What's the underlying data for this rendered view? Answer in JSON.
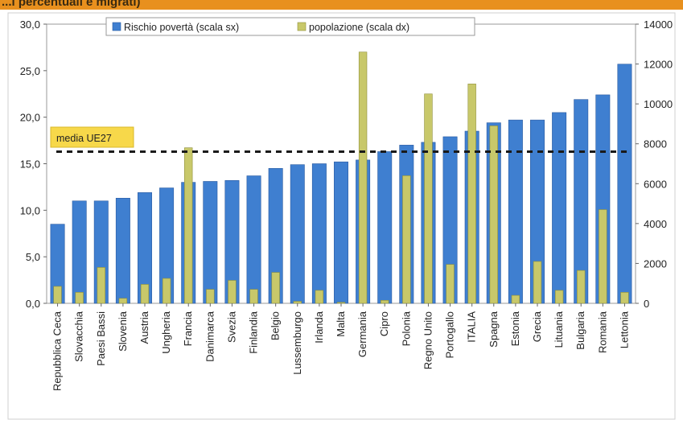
{
  "header_text": "...i percentuali e migrati)",
  "chart_data": {
    "type": "bar",
    "categories": [
      "Repubblica Ceca",
      "Slovacchia",
      "Paesi Bassi",
      "Slovenia",
      "Austria",
      "Ungheria",
      "Francia",
      "Danimarca",
      "Svezia",
      "Finlandia",
      "Belgio",
      "Lussemburgo",
      "Irlanda",
      "Malta",
      "Germania",
      "Cipro",
      "Polonia",
      "Regno Unito",
      "Portogallo",
      "ITALIA",
      "Spagna",
      "Estonia",
      "Grecia",
      "Lituania",
      "Bulgaria",
      "Romania",
      "Lettonia"
    ],
    "series": [
      {
        "name": "Rischio povertà (scala sx)",
        "axis": "left",
        "color": "#3f7fd0",
        "values": [
          8.5,
          11.0,
          11.0,
          11.3,
          11.9,
          12.4,
          13.0,
          13.1,
          13.2,
          13.7,
          14.5,
          14.9,
          15.0,
          15.2,
          15.4,
          16.3,
          17.0,
          17.3,
          17.9,
          18.5,
          19.4,
          19.7,
          19.7,
          20.5,
          21.9,
          22.4,
          25.7
        ]
      },
      {
        "name": "popolazione (scala dx)",
        "axis": "right",
        "color": "#c8c86a",
        "values": [
          850,
          550,
          1800,
          250,
          950,
          1250,
          7800,
          700,
          1150,
          700,
          1550,
          100,
          650,
          50,
          12600,
          150,
          6400,
          10500,
          1950,
          11000,
          8900,
          400,
          2100,
          650,
          1650,
          4700,
          550
        ]
      }
    ],
    "yleft": {
      "min": 0,
      "max": 30,
      "ticks": [
        "0,0",
        "5,0",
        "10,0",
        "15,0",
        "20,0",
        "25,0",
        "30,0"
      ]
    },
    "yright": {
      "min": 0,
      "max": 14000,
      "ticks": [
        "0",
        "2000",
        "4000",
        "6000",
        "8000",
        "10000",
        "12000",
        "14000"
      ]
    },
    "reference_line": {
      "label": "media UE27",
      "value": 16.3
    },
    "legend_position": "top"
  }
}
